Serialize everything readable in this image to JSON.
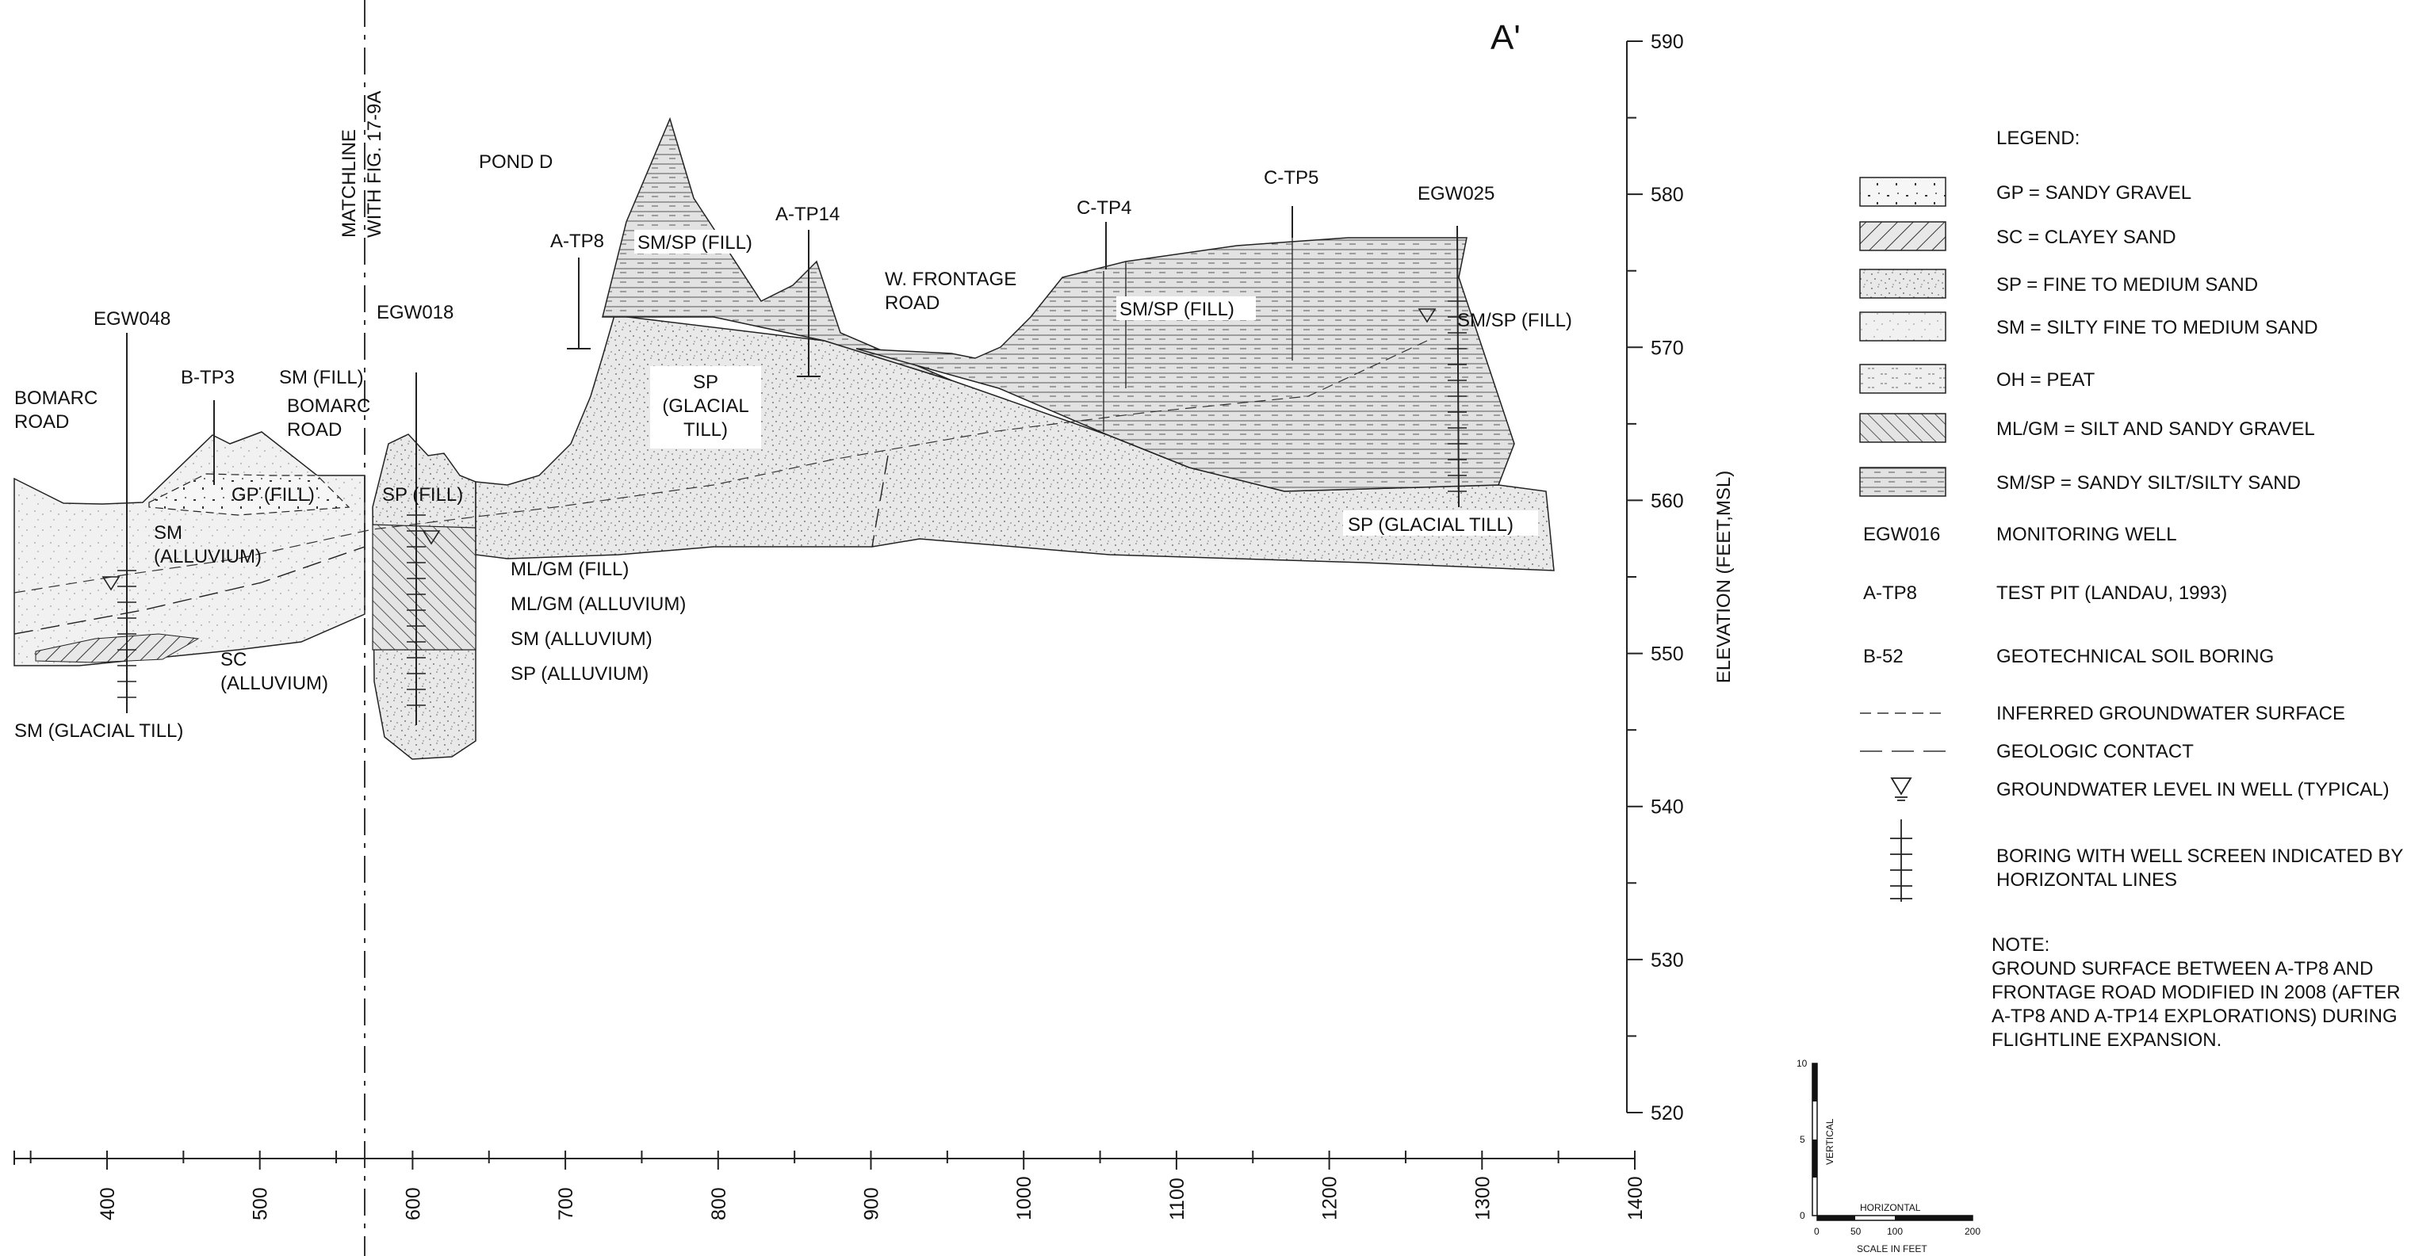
{
  "section_label": "A'",
  "matchline": [
    "MATCHLINE",
    "WITH FIG. 17-9A"
  ],
  "y_axis": {
    "title": "ELEVATION (FEET,MSL)",
    "ticks": [
      "590",
      "580",
      "570",
      "560",
      "550",
      "540",
      "530",
      "520"
    ],
    "range": [
      520,
      590
    ]
  },
  "x_axis": {
    "ticks": [
      "400",
      "500",
      "600",
      "700",
      "800",
      "900",
      "1000",
      "1100",
      "1200",
      "1300",
      "1400"
    ],
    "range": [
      340,
      1400
    ]
  },
  "explorations": {
    "egw048": "EGW048",
    "egw018": "EGW018",
    "egw025": "EGW025",
    "btp3": "B-TP3",
    "atp8": "A-TP8",
    "atp14": "A-TP14",
    "ctp4": "C-TP4",
    "ctp5": "C-TP5"
  },
  "features": {
    "bomarc1": [
      "BOMARC",
      "ROAD"
    ],
    "bomarc2": [
      "BOMARC",
      "ROAD"
    ],
    "pond_d": "POND D",
    "frontage": [
      "W. FRONTAGE",
      "ROAD"
    ]
  },
  "units": {
    "sm_fill": "SM (FILL)",
    "gp_fill": "GP (FILL)",
    "sp_fill": "SP (FILL)",
    "sm_alluvium": [
      "SM",
      "(ALLUVIUM)"
    ],
    "sc_alluvium": [
      "SC",
      "(ALLUVIUM)"
    ],
    "sm_glacial_till": "SM (GLACIAL TILL)",
    "ml_gm_fill": "ML/GM (FILL)",
    "ml_gm_alluvium": "ML/GM (ALLUVIUM)",
    "sm_alluvium_2": "SM (ALLUVIUM)",
    "sp_alluvium": "SP (ALLUVIUM)",
    "sp_glacial_till_center": [
      "SP",
      "(GLACIAL",
      "TILL)"
    ],
    "smsp_fill_a": "SM/SP (FILL)",
    "smsp_fill_b": "SM/SP (FILL)",
    "smsp_fill_c": "SM/SP (FILL)",
    "sp_glacial_till_right": "SP (GLACIAL TILL)"
  },
  "legend": {
    "title": "LEGEND:",
    "patterns": [
      {
        "key": "gp",
        "label": "GP = SANDY GRAVEL"
      },
      {
        "key": "sc",
        "label": "SC = CLAYEY SAND"
      },
      {
        "key": "sp",
        "label": "SP = FINE TO MEDIUM SAND"
      },
      {
        "key": "sm",
        "label": "SM = SILTY FINE TO MEDIUM SAND"
      },
      {
        "key": "oh",
        "label": "OH = PEAT"
      },
      {
        "key": "mlgm",
        "label": "ML/GM = SILT AND SANDY GRAVEL"
      },
      {
        "key": "smsp",
        "label": "SM/SP = SANDY SILT/SILTY SAND"
      }
    ],
    "symbols": [
      {
        "code": "EGW016",
        "label": "MONITORING WELL"
      },
      {
        "code": "A-TP8",
        "label": "TEST PIT (LANDAU, 1993)"
      },
      {
        "code": "B-52",
        "label": "GEOTECHNICAL SOIL BORING"
      }
    ],
    "lines": [
      {
        "key": "inferred",
        "label": "INFERRED GROUNDWATER SURFACE"
      },
      {
        "key": "contact",
        "label": "GEOLOGIC CONTACT"
      },
      {
        "key": "gwl",
        "label": "GROUNDWATER LEVEL IN WELL (TYPICAL)"
      },
      {
        "key": "boring",
        "label": [
          "BORING WITH WELL SCREEN INDICATED BY",
          "HORIZONTAL LINES"
        ]
      }
    ]
  },
  "note": {
    "title": "NOTE:",
    "lines": [
      "GROUND SURFACE BETWEEN A-TP8 AND",
      "FRONTAGE ROAD MODIFIED IN 2008 (AFTER",
      "A-TP8 AND A-TP14 EXPLORATIONS) DURING",
      "FLIGHTLINE EXPANSION."
    ]
  },
  "scale": {
    "v_ticks": [
      "10",
      "5",
      "0"
    ],
    "vertical": "VERTICAL",
    "horizontal": "HORIZONTAL",
    "h_ticks": [
      "0",
      "50",
      "100",
      "200"
    ],
    "caption": "SCALE IN FEET"
  }
}
